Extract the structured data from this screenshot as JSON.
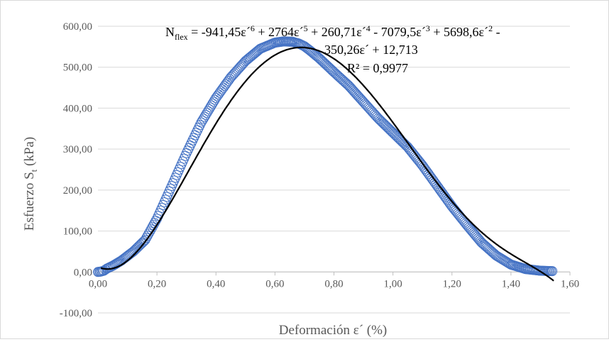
{
  "chart_data": {
    "type": "scatter",
    "xlabel": "Deformación ε´ (%)",
    "ylabel_main": "Esfuerzo S",
    "ylabel_sub": "t",
    "ylabel_unit": " (kPa)",
    "xlim": [
      0,
      1.6
    ],
    "ylim": [
      -100,
      600
    ],
    "x_ticks": [
      0,
      0.2,
      0.4,
      0.6,
      0.8,
      1.0,
      1.2,
      1.4,
      1.6
    ],
    "y_ticks": [
      -100,
      0,
      100,
      200,
      300,
      400,
      500,
      600
    ],
    "x_tick_labels": [
      "0,00",
      "0,20",
      "0,40",
      "0,60",
      "0,80",
      "1,00",
      "1,20",
      "1,40",
      "1,60"
    ],
    "y_tick_labels": [
      "-100,00",
      "0,00",
      "100,00",
      "200,00",
      "300,00",
      "400,00",
      "500,00",
      "600,00"
    ],
    "grid": "horizontal",
    "series": [
      {
        "marker": "open-circle",
        "color": "#4472c4",
        "x": [
          0.0,
          0.01,
          0.02,
          0.03,
          0.05,
          0.08,
          0.12,
          0.16,
          0.2,
          0.25,
          0.3,
          0.35,
          0.4,
          0.45,
          0.5,
          0.55,
          0.6,
          0.63,
          0.66,
          0.68,
          0.7,
          0.72,
          0.75,
          0.8,
          0.85,
          0.9,
          0.95,
          1.0,
          1.05,
          1.1,
          1.15,
          1.2,
          1.25,
          1.3,
          1.35,
          1.4,
          1.45,
          1.5,
          1.54
        ],
        "y": [
          0,
          1,
          3,
          8,
          15,
          28,
          50,
          78,
          130,
          210,
          290,
          365,
          425,
          475,
          515,
          545,
          560,
          563,
          562,
          558,
          551,
          540,
          522,
          488,
          455,
          415,
          375,
          340,
          305,
          260,
          210,
          160,
          115,
          72,
          40,
          18,
          7,
          3,
          2
        ]
      },
      {
        "marker": "none",
        "color": "#000000",
        "trendline": "poly6",
        "coefficients": [
          -941.45,
          2764,
          260.71,
          -7079.5,
          5698.6,
          -350.26,
          12.713
        ]
      }
    ],
    "annotations": {
      "eq_N": "N",
      "eq_N_sub": "flex",
      "eq_c6": " = -941,45ε´",
      "eq_e6": "6",
      "eq_c5": " + 2764ε´",
      "eq_e5": "5",
      "eq_c4": " + 260,71ε´",
      "eq_e4": "4",
      "eq_c3": " - 7079,5ε´",
      "eq_e3": "3",
      "eq_c2": " + 5698,6ε´",
      "eq_e2": "2",
      "eq_tail": " -",
      "eq_line2": "350,26ε´ + 12,713",
      "r2": "R² = 0,9977"
    }
  }
}
